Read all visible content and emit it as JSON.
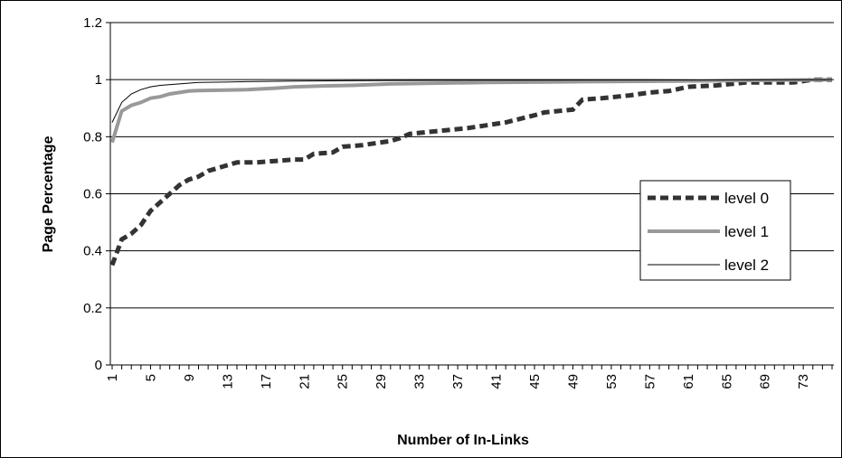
{
  "chart_data": {
    "type": "line",
    "title": "",
    "xlabel": "Number of In-Links",
    "ylabel": "Page Percentage",
    "ylim": [
      0,
      1.2
    ],
    "yticks": [
      "0",
      "0.2",
      "0.4",
      "0.6",
      "0.8",
      "1",
      "1.2"
    ],
    "x_tick_labels": [
      "1",
      "5",
      "9",
      "13",
      "17",
      "21",
      "25",
      "29",
      "33",
      "37",
      "41",
      "45",
      "49",
      "53",
      "57",
      "61",
      "65",
      "69",
      "73"
    ],
    "x_tick_values": [
      1,
      5,
      9,
      13,
      17,
      21,
      25,
      29,
      33,
      37,
      41,
      45,
      49,
      53,
      57,
      61,
      65,
      69,
      73
    ],
    "xlim": [
      1,
      76
    ],
    "grid": "horizontal",
    "legend_position": "right",
    "series": [
      {
        "name": "level 0",
        "style": "dashed-thick",
        "color": "#333333",
        "points": [
          [
            1,
            0.35
          ],
          [
            2,
            0.44
          ],
          [
            3,
            0.46
          ],
          [
            4,
            0.49
          ],
          [
            5,
            0.54
          ],
          [
            6,
            0.57
          ],
          [
            7,
            0.6
          ],
          [
            8,
            0.63
          ],
          [
            9,
            0.65
          ],
          [
            10,
            0.66
          ],
          [
            11,
            0.68
          ],
          [
            12,
            0.69
          ],
          [
            13,
            0.7
          ],
          [
            14,
            0.71
          ],
          [
            16,
            0.71
          ],
          [
            18,
            0.715
          ],
          [
            20,
            0.72
          ],
          [
            21,
            0.72
          ],
          [
            22,
            0.74
          ],
          [
            24,
            0.745
          ],
          [
            25,
            0.765
          ],
          [
            27,
            0.77
          ],
          [
            28,
            0.775
          ],
          [
            30,
            0.785
          ],
          [
            31,
            0.795
          ],
          [
            32,
            0.81
          ],
          [
            35,
            0.82
          ],
          [
            38,
            0.83
          ],
          [
            40,
            0.84
          ],
          [
            42,
            0.85
          ],
          [
            45,
            0.875
          ],
          [
            46,
            0.885
          ],
          [
            49,
            0.895
          ],
          [
            50,
            0.93
          ],
          [
            52,
            0.935
          ],
          [
            55,
            0.945
          ],
          [
            57,
            0.955
          ],
          [
            59,
            0.96
          ],
          [
            61,
            0.975
          ],
          [
            64,
            0.98
          ],
          [
            67,
            0.99
          ],
          [
            72,
            0.99
          ],
          [
            74,
            1.0
          ],
          [
            76,
            1.0
          ]
        ]
      },
      {
        "name": "level 1",
        "style": "solid-thick",
        "color": "#999999",
        "points": [
          [
            1,
            0.78
          ],
          [
            2,
            0.89
          ],
          [
            3,
            0.91
          ],
          [
            4,
            0.92
          ],
          [
            5,
            0.935
          ],
          [
            6,
            0.94
          ],
          [
            7,
            0.95
          ],
          [
            8,
            0.955
          ],
          [
            9,
            0.96
          ],
          [
            10,
            0.962
          ],
          [
            12,
            0.963
          ],
          [
            15,
            0.965
          ],
          [
            18,
            0.97
          ],
          [
            20,
            0.975
          ],
          [
            23,
            0.978
          ],
          [
            26,
            0.98
          ],
          [
            30,
            0.985
          ],
          [
            35,
            0.988
          ],
          [
            40,
            0.99
          ],
          [
            50,
            0.993
          ],
          [
            60,
            0.995
          ],
          [
            70,
            0.998
          ],
          [
            76,
            1.0
          ]
        ]
      },
      {
        "name": "level 2",
        "style": "solid-thin",
        "color": "#000000",
        "points": [
          [
            1,
            0.85
          ],
          [
            2,
            0.92
          ],
          [
            3,
            0.95
          ],
          [
            4,
            0.965
          ],
          [
            5,
            0.975
          ],
          [
            6,
            0.98
          ],
          [
            8,
            0.985
          ],
          [
            10,
            0.99
          ],
          [
            15,
            0.993
          ],
          [
            20,
            0.995
          ],
          [
            30,
            0.997
          ],
          [
            40,
            0.998
          ],
          [
            60,
            0.999
          ],
          [
            76,
            1.0
          ]
        ]
      }
    ]
  }
}
